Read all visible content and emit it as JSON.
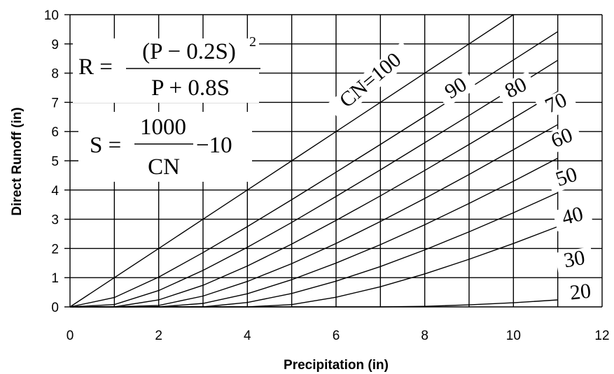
{
  "chart_data": {
    "type": "line",
    "title": "",
    "xlabel": "Precipitation (in)",
    "ylabel": "Direct Runoff (in)",
    "xlim": [
      0,
      12
    ],
    "ylim": [
      0,
      10
    ],
    "x_ticks": [
      "0",
      "2",
      "4",
      "6",
      "8",
      "10",
      "12"
    ],
    "y_ticks": [
      "0",
      "1",
      "2",
      "3",
      "4",
      "5",
      "6",
      "7",
      "8",
      "9",
      "10"
    ],
    "grid": true,
    "x": [
      0,
      1,
      2,
      3,
      4,
      5,
      6,
      7,
      8,
      9,
      10,
      11
    ],
    "series": [
      {
        "name": "CN=100",
        "values": [
          0,
          1,
          2,
          3,
          4,
          5,
          6,
          7,
          8,
          9,
          10,
          null
        ]
      },
      {
        "name": "90",
        "values": [
          0,
          0.32,
          1.02,
          1.86,
          2.75,
          3.67,
          4.61,
          5.56,
          6.52,
          7.48,
          8.45,
          9.42
        ]
      },
      {
        "name": "80",
        "values": [
          0,
          0.08,
          0.56,
          1.25,
          2.04,
          2.89,
          3.78,
          4.69,
          5.62,
          6.55,
          7.49,
          8.44
        ]
      },
      {
        "name": "70",
        "values": [
          0,
          0,
          0.24,
          0.74,
          1.4,
          2.15,
          2.96,
          3.8,
          4.67,
          5.56,
          6.46,
          7.37
        ]
      },
      {
        "name": "60",
        "values": [
          0,
          0,
          0.05,
          0.37,
          0.87,
          1.48,
          2.17,
          2.92,
          3.71,
          4.53,
          5.38,
          6.24
        ]
      },
      {
        "name": "50",
        "values": [
          0,
          0,
          0,
          0.12,
          0.45,
          0.93,
          1.5,
          2.13,
          2.81,
          3.54,
          4.3,
          5.09
        ]
      },
      {
        "name": "40",
        "values": [
          0,
          0,
          0,
          0,
          0.15,
          0.46,
          0.88,
          1.38,
          1.95,
          2.57,
          3.22,
          3.91
        ]
      },
      {
        "name": "30",
        "values": [
          0,
          0,
          0,
          0,
          0,
          0.08,
          0.33,
          0.69,
          1.13,
          1.63,
          2.17,
          2.75
        ]
      },
      {
        "name": "20",
        "values": [
          0,
          0,
          0,
          0,
          0,
          0,
          0,
          0,
          0.02,
          0.07,
          0.14,
          0.24
        ]
      }
    ],
    "annotations": {
      "eq1_lhs": "R =",
      "eq1_numerator": "(P − 0.2S)",
      "eq1_exponent": "2",
      "eq1_denominator": "P + 0.8S",
      "eq2_lhs": "S =",
      "eq2_numerator": "1000",
      "eq2_denominator": "CN",
      "eq2_tail": "−10"
    }
  }
}
